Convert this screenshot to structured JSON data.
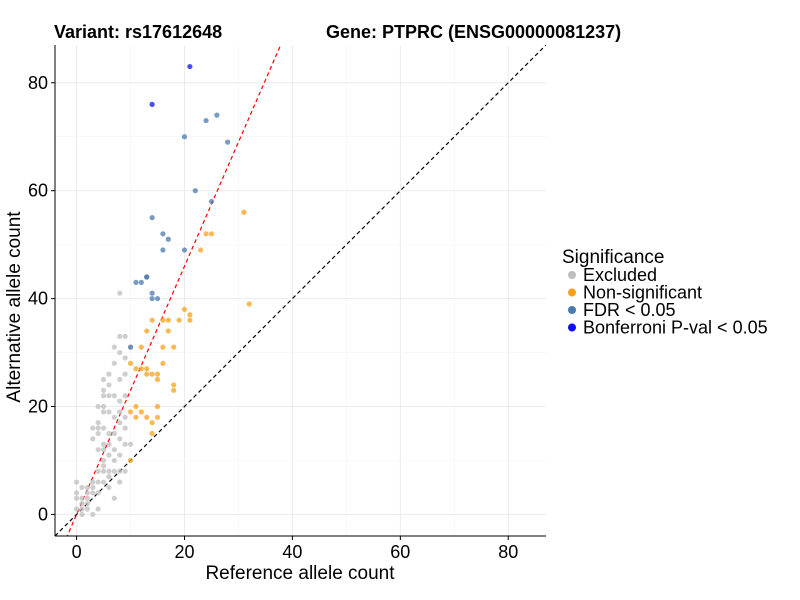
{
  "chart_data": {
    "type": "scatter",
    "title_left": "Variant: rs17612648",
    "title_right": "Gene: PTPRC (ENSG00000081237)",
    "xlabel": "Reference allele count",
    "ylabel": "Alternative allele count",
    "xlim": [
      -4,
      87
    ],
    "ylim": [
      -4,
      87
    ],
    "xticks": [
      0,
      20,
      40,
      60,
      80
    ],
    "yticks": [
      0,
      20,
      40,
      60,
      80
    ],
    "grid": true,
    "reference_lines": [
      {
        "name": "identity",
        "slope": 1,
        "intercept": 0,
        "color": "#000000",
        "dash": true
      },
      {
        "name": "fit",
        "slope": 2.3,
        "intercept": 0,
        "color": "#ff0000",
        "dash": true
      }
    ],
    "legend": {
      "title": "Significance",
      "placement": "right",
      "entries": [
        {
          "label": "Excluded",
          "color": "#bebebe"
        },
        {
          "label": "Non-significant",
          "color": "#f7a21c"
        },
        {
          "label": "FDR < 0.05",
          "color": "#4a7ab0"
        },
        {
          "label": "Bonferroni P-val < 0.05",
          "color": "#1010f0"
        }
      ]
    },
    "series": [
      {
        "name": "Excluded",
        "color": "#bebebe",
        "points": [
          [
            0,
            6
          ],
          [
            0,
            4
          ],
          [
            0,
            3
          ],
          [
            0,
            1
          ],
          [
            1,
            1
          ],
          [
            1,
            3
          ],
          [
            1,
            5
          ],
          [
            1,
            0
          ],
          [
            2,
            2
          ],
          [
            2,
            4
          ],
          [
            2,
            5
          ],
          [
            2,
            1
          ],
          [
            3,
            0
          ],
          [
            3,
            4
          ],
          [
            3,
            5
          ],
          [
            3,
            6
          ],
          [
            3,
            14
          ],
          [
            3,
            16
          ],
          [
            4,
            1
          ],
          [
            4,
            4
          ],
          [
            4,
            6
          ],
          [
            4,
            8
          ],
          [
            4,
            12
          ],
          [
            4,
            15
          ],
          [
            4,
            16
          ],
          [
            4,
            17
          ],
          [
            5,
            6
          ],
          [
            5,
            8
          ],
          [
            5,
            9
          ],
          [
            5,
            10
          ],
          [
            5,
            12
          ],
          [
            5,
            13
          ],
          [
            5,
            16
          ],
          [
            5,
            19
          ],
          [
            5,
            20
          ],
          [
            5,
            22
          ],
          [
            5,
            23
          ],
          [
            5,
            25
          ],
          [
            6,
            8
          ],
          [
            6,
            11
          ],
          [
            6,
            13
          ],
          [
            6,
            15
          ],
          [
            6,
            19
          ],
          [
            6,
            22
          ],
          [
            6,
            24
          ],
          [
            6,
            26
          ],
          [
            6,
            5
          ],
          [
            7,
            3
          ],
          [
            7,
            8
          ],
          [
            7,
            10
          ],
          [
            7,
            12
          ],
          [
            7,
            15
          ],
          [
            7,
            18
          ],
          [
            7,
            22
          ],
          [
            7,
            28
          ],
          [
            7,
            31
          ],
          [
            8,
            11
          ],
          [
            8,
            14
          ],
          [
            8,
            17
          ],
          [
            8,
            19
          ],
          [
            8,
            21
          ],
          [
            8,
            25
          ],
          [
            8,
            30
          ],
          [
            8,
            33
          ],
          [
            8,
            41
          ],
          [
            8,
            8
          ],
          [
            9,
            8
          ],
          [
            9,
            13
          ],
          [
            9,
            18
          ],
          [
            9,
            22
          ],
          [
            9,
            26
          ],
          [
            9,
            29
          ],
          [
            9,
            33
          ],
          [
            10,
            31
          ],
          [
            10,
            13
          ],
          [
            9,
            16
          ],
          [
            4,
            20
          ],
          [
            6,
            7
          ],
          [
            8,
            6
          ],
          [
            2,
            3
          ],
          [
            1,
            2
          ]
        ]
      },
      {
        "name": "Non-significant",
        "color": "#f7a21c",
        "points": [
          [
            10,
            10
          ],
          [
            10,
            19
          ],
          [
            10,
            28
          ],
          [
            11,
            20
          ],
          [
            11,
            18
          ],
          [
            11,
            27
          ],
          [
            12,
            19
          ],
          [
            12,
            27
          ],
          [
            12,
            31
          ],
          [
            13,
            18
          ],
          [
            13,
            27
          ],
          [
            13,
            34
          ],
          [
            14,
            15
          ],
          [
            14,
            17
          ],
          [
            14,
            26
          ],
          [
            14,
            36
          ],
          [
            15,
            20
          ],
          [
            15,
            26
          ],
          [
            15,
            18
          ],
          [
            16,
            28
          ],
          [
            16,
            31
          ],
          [
            16,
            36
          ],
          [
            17,
            34
          ],
          [
            17,
            36
          ],
          [
            18,
            23
          ],
          [
            18,
            24
          ],
          [
            18,
            31
          ],
          [
            19,
            36
          ],
          [
            20,
            38
          ],
          [
            21,
            37
          ],
          [
            21,
            36
          ],
          [
            23,
            49
          ],
          [
            24,
            52
          ],
          [
            25,
            52
          ],
          [
            31,
            56
          ],
          [
            32,
            39
          ],
          [
            13,
            26
          ],
          [
            15,
            25
          ]
        ]
      },
      {
        "name": "FDR < 0.05",
        "color": "#4a7ab0",
        "points": [
          [
            10,
            31
          ],
          [
            11,
            43
          ],
          [
            12,
            43
          ],
          [
            13,
            44
          ],
          [
            13,
            44
          ],
          [
            14,
            40
          ],
          [
            14,
            41
          ],
          [
            14,
            55
          ],
          [
            15,
            40
          ],
          [
            16,
            52
          ],
          [
            16,
            49
          ],
          [
            17,
            51
          ],
          [
            20,
            49
          ],
          [
            20,
            70
          ],
          [
            22,
            60
          ],
          [
            24,
            73
          ],
          [
            25,
            58
          ],
          [
            26,
            74
          ],
          [
            28,
            69
          ]
        ]
      },
      {
        "name": "Bonferroni P-val < 0.05",
        "color": "#1010f0",
        "points": [
          [
            14,
            76
          ],
          [
            21,
            83
          ]
        ]
      }
    ]
  }
}
